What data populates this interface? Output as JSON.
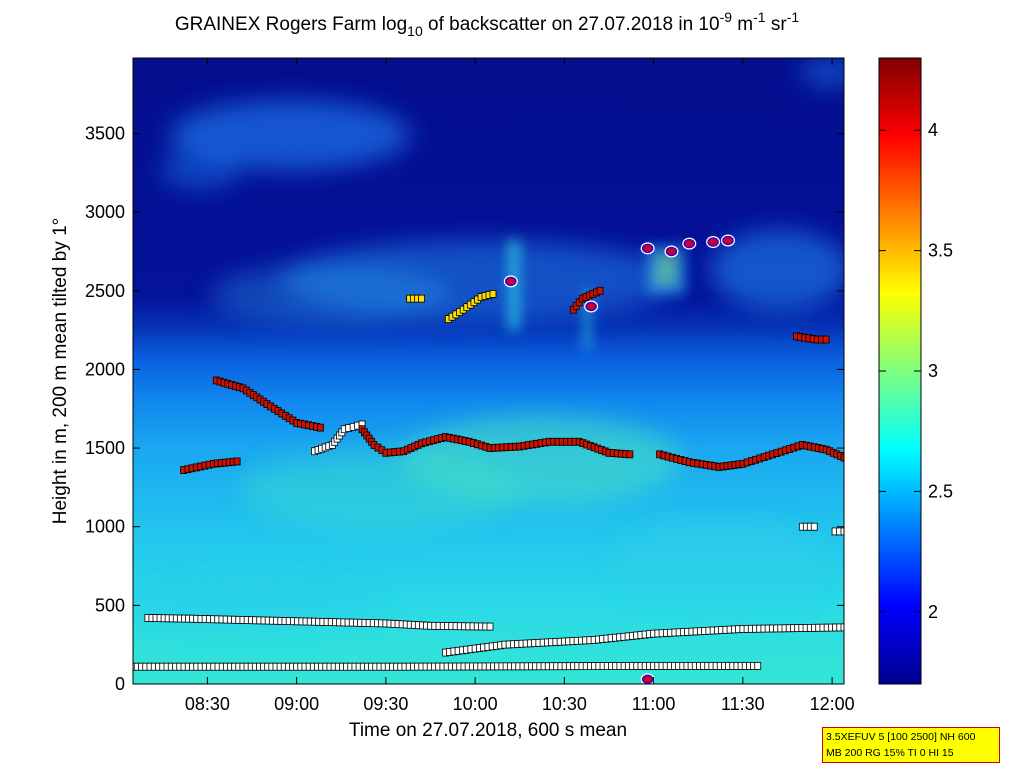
{
  "chart_data": {
    "type": "heatmap",
    "title_main": "GRAINEX Rogers Farm log",
    "title_sub": "10",
    "title_mid": " of backscatter on 27.07.2018 in 10",
    "title_sup1": "-9",
    "title_unit1": " m",
    "title_sup2": "-1",
    "title_unit2": " sr",
    "title_sup3": "-1",
    "xlabel": "Time on 27.07.2018, 600 s mean",
    "ylabel": "Height in m, 200 m mean tilted by 1°",
    "x_start_hours": "08:05",
    "x_end_hours": "12:04",
    "xlim_min": [
      485,
      724
    ],
    "ylim": [
      0,
      4000
    ],
    "x_ticks": [
      {
        "min": 510,
        "label": "08:30"
      },
      {
        "min": 540,
        "label": "09:00"
      },
      {
        "min": 570,
        "label": "09:30"
      },
      {
        "min": 600,
        "label": "10:00"
      },
      {
        "min": 630,
        "label": "10:30"
      },
      {
        "min": 660,
        "label": "11:00"
      },
      {
        "min": 690,
        "label": "11:30"
      },
      {
        "min": 720,
        "label": "12:00"
      }
    ],
    "y_ticks": [
      0,
      500,
      1000,
      1500,
      2000,
      2500,
      3000,
      3500
    ],
    "colorbar": {
      "range": [
        1.7,
        4.3
      ],
      "ticks": [
        2,
        2.5,
        3,
        3.5,
        4
      ],
      "colormap": "jet"
    },
    "layer_markers": [
      {
        "name": "surface-layer",
        "color": "#ffffff",
        "points": [
          [
            485,
            110
          ],
          [
            515,
            110
          ],
          [
            540,
            110
          ],
          [
            575,
            110
          ],
          [
            660,
            115
          ],
          [
            695,
            115
          ]
        ]
      },
      {
        "name": "aerosol-layer-low",
        "color": "#ffffff",
        "points": [
          [
            490,
            420
          ],
          [
            505,
            415
          ],
          [
            570,
            385
          ],
          [
            585,
            370
          ],
          [
            605,
            365
          ]
        ]
      },
      {
        "name": "residual-layer",
        "color": "#ffffff",
        "points": [
          [
            590,
            200
          ],
          [
            610,
            250
          ],
          [
            640,
            280
          ],
          [
            660,
            320
          ],
          [
            690,
            350
          ],
          [
            724,
            360
          ]
        ]
      },
      {
        "name": "boundary-layer-top",
        "color": "#cc1100",
        "points": [
          [
            502,
            1360
          ],
          [
            512,
            1400
          ],
          [
            520,
            1415
          ]
        ]
      },
      {
        "name": "boundary-layer-top",
        "color": "#cc1100",
        "points": [
          [
            513,
            1930
          ],
          [
            522,
            1880
          ],
          [
            530,
            1780
          ],
          [
            540,
            1660
          ],
          [
            548,
            1630
          ]
        ]
      },
      {
        "name": "boundary-layer-top",
        "color": "#ffffff",
        "points": [
          [
            546,
            1480
          ],
          [
            552,
            1520
          ],
          [
            556,
            1620
          ],
          [
            562,
            1650
          ]
        ]
      },
      {
        "name": "boundary-layer-top",
        "color": "#cc1100",
        "points": [
          [
            562,
            1620
          ],
          [
            566,
            1520
          ],
          [
            570,
            1470
          ],
          [
            576,
            1480
          ],
          [
            582,
            1530
          ],
          [
            590,
            1570
          ],
          [
            598,
            1540
          ],
          [
            605,
            1500
          ],
          [
            615,
            1510
          ],
          [
            625,
            1540
          ],
          [
            635,
            1540
          ],
          [
            645,
            1470
          ],
          [
            652,
            1460
          ]
        ]
      },
      {
        "name": "boundary-layer-top",
        "color": "#cc1100",
        "points": [
          [
            662,
            1460
          ],
          [
            672,
            1410
          ],
          [
            682,
            1380
          ],
          [
            690,
            1400
          ],
          [
            700,
            1460
          ],
          [
            710,
            1520
          ],
          [
            718,
            1490
          ],
          [
            724,
            1440
          ]
        ]
      },
      {
        "name": "upper-layer",
        "color": "#ffdd00",
        "points": [
          [
            578,
            2450
          ],
          [
            582,
            2450
          ]
        ]
      },
      {
        "name": "upper-layer",
        "color": "#ffdd00",
        "points": [
          [
            591,
            2320
          ],
          [
            596,
            2380
          ],
          [
            602,
            2460
          ],
          [
            606,
            2480
          ]
        ]
      },
      {
        "name": "upper-layer",
        "color": "#cc1100",
        "points": [
          [
            633,
            2380
          ],
          [
            636,
            2450
          ],
          [
            642,
            2500
          ]
        ]
      },
      {
        "name": "upper-layer",
        "color": "#ffffff",
        "points": [
          [
            710,
            1000
          ],
          [
            714,
            1000
          ]
        ]
      },
      {
        "name": "upper-layer",
        "color": "#cc1100",
        "points": [
          [
            708,
            2210
          ],
          [
            715,
            2190
          ],
          [
            718,
            2190
          ]
        ]
      },
      {
        "name": "upper-layer",
        "color": "#ffffff",
        "points": [
          [
            721,
            970
          ],
          [
            724,
            970
          ]
        ]
      }
    ],
    "cloud_base_markers": [
      [
        612,
        2560
      ],
      [
        639,
        2400
      ],
      [
        658,
        2770
      ],
      [
        666,
        2750
      ],
      [
        672,
        2800
      ],
      [
        680,
        2810
      ],
      [
        685,
        2820
      ],
      [
        658,
        30
      ]
    ]
  },
  "info_box": {
    "line1": "3.5XEFUV 5 [100 2500] NH 600",
    "line2": "MB 200 RG 15% TI 0 HI 15"
  }
}
